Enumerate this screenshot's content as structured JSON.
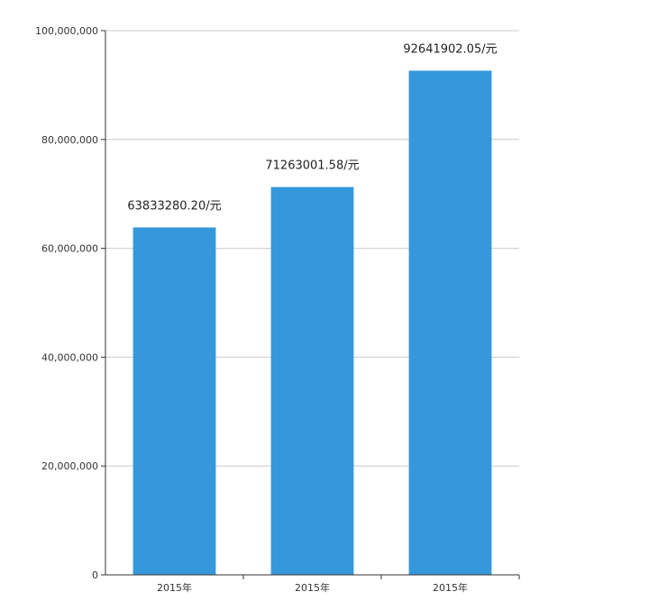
{
  "chart_data": {
    "type": "bar",
    "title": "",
    "xlabel": "",
    "ylabel": "",
    "categories": [
      "2015年",
      "2015年",
      "2015年"
    ],
    "values": [
      63833280.2,
      71263001.58,
      92641902.05
    ],
    "data_labels": [
      "63833280.20/元",
      "71263001.58/元",
      "92641902.05/元"
    ],
    "ylim": [
      0,
      100000000
    ],
    "y_ticks": [
      0,
      20000000,
      40000000,
      60000000,
      80000000,
      100000000
    ],
    "y_tick_labels": [
      "0",
      "20,000,000",
      "40,000,000",
      "60,000,000",
      "80,000,000",
      "100,000,000"
    ],
    "grid": true,
    "legend": "none",
    "colors": {
      "bar": "#3498db",
      "grid": "#cccccc",
      "axis": "#333333"
    }
  }
}
